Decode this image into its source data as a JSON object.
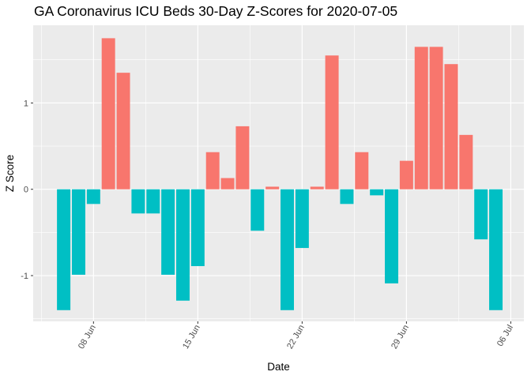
{
  "chart_data": {
    "type": "bar",
    "title": "GA Coronavirus ICU Beds 30-Day Z-Scores for 2020-07-05",
    "xlabel": "Date",
    "ylabel": "Z Score",
    "x_tick_labels": [
      "08 Jun",
      "15 Jun",
      "22 Jun",
      "29 Jun",
      "06 Jul"
    ],
    "y_tick_labels": [
      "-1",
      "0",
      "1"
    ],
    "ylim": [
      -1.53,
      1.9
    ],
    "grid": true,
    "legend": "none",
    "colors": {
      "positive": "#F8766D",
      "negative": "#00BFC4",
      "panel": "#EBEBEB",
      "grid": "#FFFFFF"
    },
    "categories": [
      "2020-06-06",
      "2020-06-07",
      "2020-06-08",
      "2020-06-09",
      "2020-06-10",
      "2020-06-11",
      "2020-06-12",
      "2020-06-13",
      "2020-06-14",
      "2020-06-15",
      "2020-06-16",
      "2020-06-17",
      "2020-06-18",
      "2020-06-19",
      "2020-06-20",
      "2020-06-21",
      "2020-06-22",
      "2020-06-23",
      "2020-06-24",
      "2020-06-25",
      "2020-06-26",
      "2020-06-27",
      "2020-06-28",
      "2020-06-29",
      "2020-06-30",
      "2020-07-01",
      "2020-07-02",
      "2020-07-03",
      "2020-07-04",
      "2020-07-05"
    ],
    "values": [
      -1.4,
      -0.99,
      -0.17,
      1.75,
      1.35,
      -0.28,
      -0.28,
      -0.99,
      -1.29,
      -0.89,
      0.43,
      0.13,
      0.73,
      -0.48,
      0.03,
      -1.4,
      -0.68,
      0.03,
      1.55,
      -0.17,
      0.43,
      -0.07,
      -1.09,
      0.33,
      1.65,
      1.65,
      1.45,
      0.63,
      -0.58,
      -1.4
    ]
  }
}
